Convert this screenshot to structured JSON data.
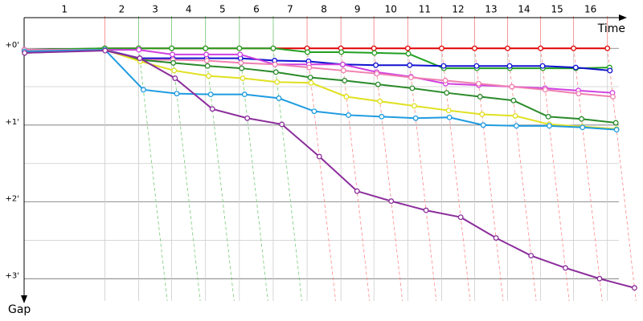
{
  "chart_data": {
    "type": "gap",
    "x_label": "Time",
    "y_label": "Gap",
    "laps": [
      "1",
      "2",
      "3",
      "4",
      "5",
      "6",
      "7",
      "8",
      "9",
      "10",
      "11",
      "12",
      "13",
      "14",
      "15",
      "16"
    ],
    "x": [
      0,
      9.3,
      13.2,
      17.0,
      20.9,
      24.8,
      28.7,
      32.6,
      36.5,
      40.3,
      44.2,
      48.1,
      51.9,
      55.7,
      59.5,
      63.3,
      67.2
    ],
    "xlim": [
      0,
      71.3
    ],
    "ylim": [
      -0.42,
      3.29
    ],
    "yticks": [
      {
        "value": 0,
        "label": "+0'"
      },
      {
        "value": 1,
        "label": "+1'"
      },
      {
        "value": 2,
        "label": "+2'"
      },
      {
        "value": 3,
        "label": "+3'"
      }
    ],
    "grid": true,
    "series": [
      {
        "color": "#e00000",
        "values": [
          0.03,
          0,
          0,
          0,
          0,
          0,
          0,
          0,
          0,
          0,
          0,
          0,
          0,
          0,
          0,
          0,
          0
        ]
      },
      {
        "color": "#22a022",
        "values": [
          0.02,
          0,
          0,
          0,
          0,
          0,
          0,
          0.05,
          0.05,
          0.06,
          0.07,
          0.26,
          0.26,
          0.26,
          0.26,
          0.26,
          0.25
        ]
      },
      {
        "color": "#1010d0",
        "values": [
          0.02,
          0.02,
          0.13,
          0.13,
          0.13,
          0.13,
          0.16,
          0.17,
          0.21,
          0.22,
          0.22,
          0.23,
          0.23,
          0.23,
          0.23,
          0.25,
          0.29
        ]
      },
      {
        "color": "#d040e0",
        "values": [
          0.02,
          0.02,
          0.02,
          0.08,
          0.08,
          0.08,
          0.21,
          0.21,
          0.21,
          0.31,
          0.37,
          0.46,
          0.48,
          0.5,
          0.52,
          0.55,
          0.58
        ]
      },
      {
        "color": "#f080b0",
        "values": [
          0.02,
          0.02,
          0.15,
          0.15,
          0.16,
          0.19,
          0.21,
          0.25,
          0.29,
          0.33,
          0.38,
          0.42,
          0.46,
          0.5,
          0.54,
          0.59,
          0.63
        ]
      },
      {
        "color": "#2a8a2a",
        "values": [
          0.06,
          0.02,
          0.15,
          0.19,
          0.23,
          0.26,
          0.31,
          0.38,
          0.42,
          0.47,
          0.52,
          0.58,
          0.63,
          0.68,
          0.89,
          0.92,
          0.97
        ]
      },
      {
        "color": "#e0e020",
        "values": [
          0.04,
          0.02,
          0.17,
          0.29,
          0.36,
          0.39,
          0.44,
          0.45,
          0.63,
          0.69,
          0.75,
          0.81,
          0.86,
          0.88,
          0.99,
          1.02,
          1.05
        ]
      },
      {
        "color": "#1e9be0",
        "values": [
          0.04,
          0.02,
          0.54,
          0.59,
          0.6,
          0.6,
          0.65,
          0.82,
          0.87,
          0.89,
          0.91,
          0.9,
          1.0,
          1.01,
          1.01,
          1.03,
          1.06
        ]
      },
      {
        "color": "#8b2d9b",
        "values": [
          0.06,
          0.03,
          0.13,
          0.39,
          0.79,
          0.91,
          0.99,
          1.41,
          1.86,
          1.99,
          2.11,
          2.2,
          2.47,
          2.7,
          2.86,
          3.0,
          3.12
        ]
      }
    ]
  }
}
